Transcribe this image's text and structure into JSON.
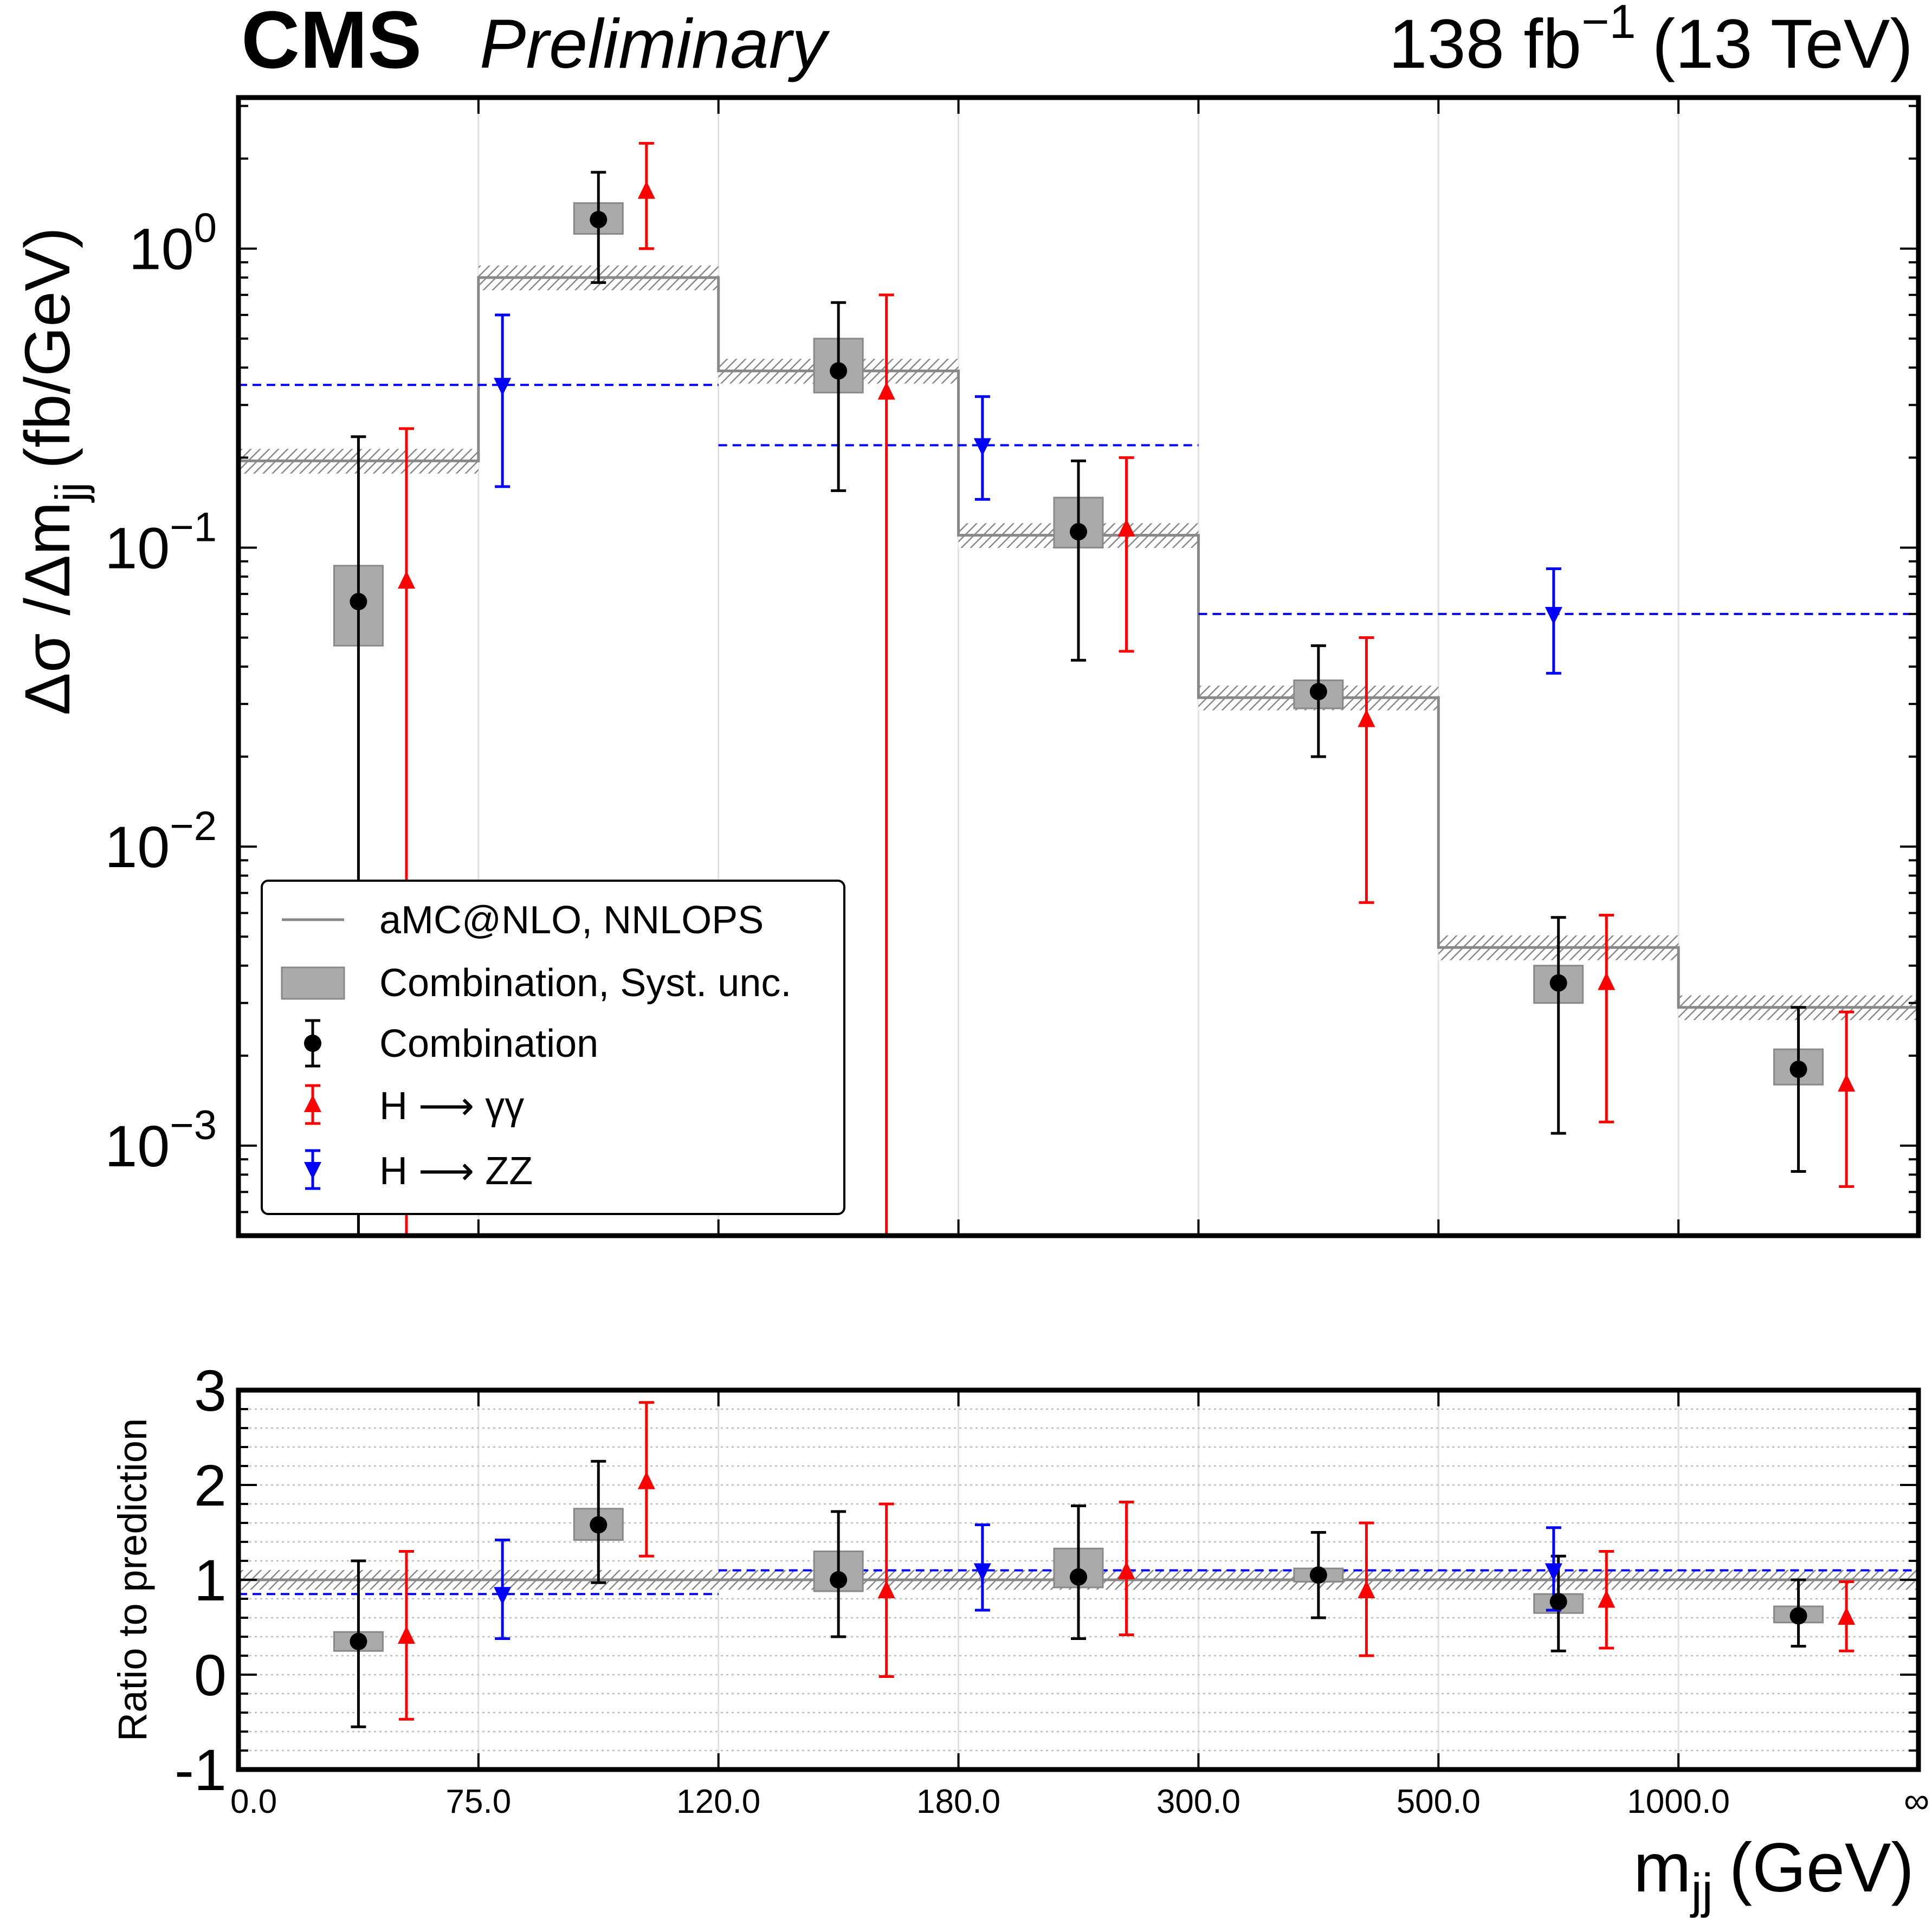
{
  "chart_data": {
    "type": "scatter",
    "experiment": "CMS",
    "status": "Preliminary",
    "lumi": "138 fb",
    "lumi_exp": "−1",
    "energy": "(13 TeV)",
    "xlabel": "m",
    "xlabel_sub": "jj",
    "xlabel_unit": "(GeV)",
    "ylabel_main_pre": "Δσ /Δm",
    "ylabel_main_sub": "jj",
    "ylabel_main_unit": "(fb/GeV)",
    "ylabel_ratio": "Ratio to prediction",
    "bins": [
      "0.0",
      "75.0",
      "120.0",
      "180.0",
      "300.0",
      "500.0",
      "1000.0",
      "∞"
    ],
    "main_yscale": "log",
    "main_ylim": [
      0.0005,
      3.2
    ],
    "main_yticks": [
      {
        "base": "10",
        "exp": "0",
        "value": 1
      },
      {
        "base": "10",
        "exp": "−1",
        "value": 0.1
      },
      {
        "base": "10",
        "exp": "−2",
        "value": 0.01
      },
      {
        "base": "10",
        "exp": "−3",
        "value": 0.001
      }
    ],
    "ratio_ylim": [
      -1,
      3
    ],
    "ratio_yticks": [
      "-1",
      "0",
      "1",
      "2",
      "3"
    ],
    "prediction": {
      "name": "aMC@NLO, NNLOPS",
      "values": [
        0.195,
        0.8,
        0.39,
        0.11,
        0.0315,
        0.0046,
        0.0029
      ],
      "unc_frac": 0.07
    },
    "combination": {
      "name": "Combination",
      "values": [
        0.066,
        1.25,
        0.39,
        0.113,
        0.033,
        0.0035,
        0.0018
      ],
      "err_lo": [
        0.0005,
        0.77,
        0.155,
        0.042,
        0.02,
        0.0011,
        0.00082
      ],
      "err_hi": [
        0.235,
        1.8,
        0.66,
        0.195,
        0.047,
        0.0058,
        0.0029
      ],
      "syst_lo": [
        0.047,
        1.12,
        0.33,
        0.1,
        0.029,
        0.003,
        0.0016
      ],
      "syst_hi": [
        0.087,
        1.42,
        0.5,
        0.147,
        0.036,
        0.004,
        0.0021
      ],
      "ratio": [
        0.35,
        1.58,
        1.0,
        1.03,
        1.05,
        0.77,
        0.62
      ],
      "ratio_err_lo": [
        -0.55,
        0.97,
        0.4,
        0.38,
        0.6,
        0.25,
        0.3
      ],
      "ratio_err_hi": [
        1.2,
        2.25,
        1.72,
        1.78,
        1.5,
        1.25,
        1.0
      ],
      "ratio_syst_lo": [
        0.25,
        1.42,
        0.88,
        0.92,
        0.98,
        0.65,
        0.55
      ],
      "ratio_syst_hi": [
        0.45,
        1.75,
        1.3,
        1.33,
        1.12,
        0.85,
        0.72
      ]
    },
    "hgg": {
      "name": "H ⟶ γγ",
      "values": [
        0.077,
        1.55,
        0.33,
        0.115,
        0.0265,
        0.0035,
        0.0016
      ],
      "err_lo": [
        0.0005,
        1.0,
        0.0005,
        0.045,
        0.0065,
        0.0012,
        0.00073
      ],
      "err_hi": [
        0.25,
        2.25,
        0.7,
        0.2,
        0.05,
        0.0059,
        0.0028
      ],
      "ratio": [
        0.4,
        2.03,
        0.88,
        1.08,
        0.88,
        0.78,
        0.6
      ],
      "ratio_err_lo": [
        -0.47,
        1.25,
        -0.02,
        0.42,
        0.2,
        0.28,
        0.25
      ],
      "ratio_err_hi": [
        1.3,
        2.87,
        1.8,
        1.82,
        1.6,
        1.3,
        0.98
      ]
    },
    "hzz": {
      "name": "H ⟶  ZZ",
      "values": [
        0.35,
        0.22,
        0.06
      ],
      "err_lo": [
        0.16,
        0.145,
        0.038
      ],
      "err_hi": [
        0.6,
        0.32,
        0.085
      ],
      "bin_ranges": [
        [
          0,
          2
        ],
        [
          2,
          4
        ],
        [
          4,
          7
        ]
      ],
      "ratio": [
        0.85,
        1.1,
        1.1
      ],
      "ratio_err_lo": [
        0.38,
        0.68,
        0.68
      ],
      "ratio_err_hi": [
        1.42,
        1.58,
        1.55
      ]
    },
    "legend": {
      "position": "lower-left",
      "entries": [
        "aMC@NLO, NNLOPS",
        "Combination, Syst. unc.",
        "Combination",
        "H ⟶ γγ",
        "H ⟶  ZZ"
      ]
    },
    "colors": {
      "combination": "#000000",
      "hgg": "#ff0000",
      "hzz": "#0000ff",
      "prediction": "#888888",
      "syst": "#aaaaaa"
    }
  }
}
